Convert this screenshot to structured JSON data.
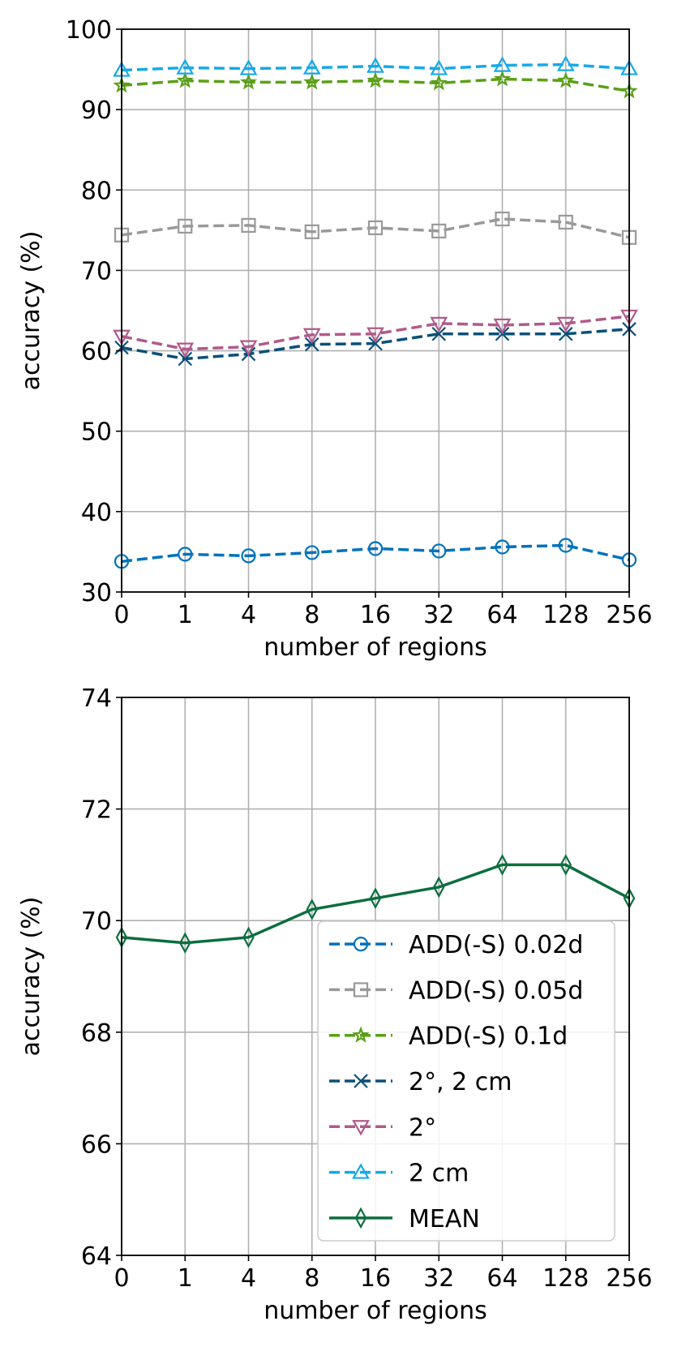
{
  "chart_data": [
    {
      "type": "line",
      "xlabel": "number of regions",
      "ylabel": "accuracy (%)",
      "categories": [
        "0",
        "1",
        "4",
        "8",
        "16",
        "32",
        "64",
        "128",
        "256"
      ],
      "ylim": [
        30,
        100
      ],
      "yticks": [
        "30",
        "40",
        "50",
        "60",
        "70",
        "80",
        "90",
        "100"
      ],
      "grid": true,
      "series": [
        {
          "name": "ADD(-S) 0.02d",
          "marker": "circle",
          "style": "dashed",
          "color": "#0072bd",
          "values": [
            33.8,
            34.7,
            34.5,
            34.9,
            35.4,
            35.1,
            35.6,
            35.8,
            34.0
          ]
        },
        {
          "name": "ADD(-S) 0.05d",
          "marker": "square",
          "style": "dashed",
          "color": "#999999",
          "values": [
            74.4,
            75.5,
            75.6,
            74.8,
            75.3,
            74.9,
            76.4,
            76.0,
            74.1
          ]
        },
        {
          "name": "ADD(-S) 0.1d",
          "marker": "star",
          "style": "dashed",
          "color": "#5aa017",
          "values": [
            93.0,
            93.6,
            93.4,
            93.4,
            93.6,
            93.3,
            93.8,
            93.6,
            92.3
          ]
        },
        {
          "name": "2°, 2 cm",
          "marker": "x",
          "style": "dashed",
          "color": "#0b4f79",
          "values": [
            60.4,
            59.0,
            59.6,
            60.8,
            60.9,
            62.1,
            62.1,
            62.1,
            62.7
          ]
        },
        {
          "name": "2°",
          "marker": "triangle-down",
          "style": "dashed",
          "color": "#b05a8a",
          "values": [
            61.8,
            60.2,
            60.5,
            62.0,
            62.1,
            63.4,
            63.2,
            63.4,
            64.3
          ]
        },
        {
          "name": "2 cm",
          "marker": "triangle-up",
          "style": "dashed",
          "color": "#16a9e8",
          "values": [
            94.9,
            95.2,
            95.1,
            95.2,
            95.4,
            95.1,
            95.5,
            95.6,
            95.1
          ]
        }
      ]
    },
    {
      "type": "line",
      "xlabel": "number of regions",
      "ylabel": "accuracy (%)",
      "categories": [
        "0",
        "1",
        "4",
        "8",
        "16",
        "32",
        "64",
        "128",
        "256"
      ],
      "ylim": [
        64,
        74
      ],
      "yticks": [
        "64",
        "66",
        "68",
        "70",
        "72",
        "74"
      ],
      "grid": true,
      "legend_position": "lower-right",
      "series": [
        {
          "name": "MEAN",
          "marker": "diamond",
          "style": "solid",
          "color": "#0b6e3e",
          "values": [
            69.7,
            69.6,
            69.7,
            70.2,
            70.4,
            70.6,
            71.0,
            71.0,
            70.4
          ]
        }
      ],
      "legend": [
        {
          "name": "ADD(-S) 0.02d",
          "marker": "circle",
          "style": "dashed",
          "color": "#0072bd"
        },
        {
          "name": "ADD(-S) 0.05d",
          "marker": "square",
          "style": "dashed",
          "color": "#999999"
        },
        {
          "name": "ADD(-S) 0.1d",
          "marker": "star",
          "style": "dashed",
          "color": "#5aa017"
        },
        {
          "name": "2°, 2 cm",
          "marker": "x",
          "style": "dashed",
          "color": "#0b4f79"
        },
        {
          "name": "2°",
          "marker": "triangle-down",
          "style": "dashed",
          "color": "#b05a8a"
        },
        {
          "name": "2 cm",
          "marker": "triangle-up",
          "style": "dashed",
          "color": "#16a9e8"
        },
        {
          "name": "MEAN",
          "marker": "diamond",
          "style": "solid",
          "color": "#0b6e3e"
        }
      ]
    }
  ]
}
